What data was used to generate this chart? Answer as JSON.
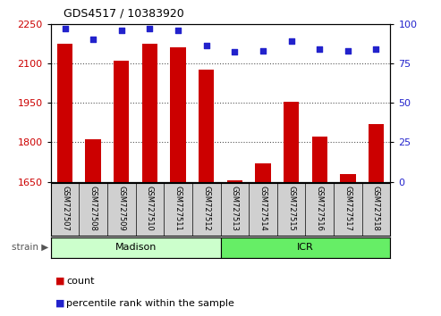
{
  "title": "GDS4517 / 10383920",
  "categories": [
    "GSM727507",
    "GSM727508",
    "GSM727509",
    "GSM727510",
    "GSM727511",
    "GSM727512",
    "GSM727513",
    "GSM727514",
    "GSM727515",
    "GSM727516",
    "GSM727517",
    "GSM727518"
  ],
  "count_values": [
    2175,
    1810,
    2110,
    2175,
    2160,
    2075,
    1655,
    1720,
    1955,
    1820,
    1680,
    1870
  ],
  "percentile_values": [
    97,
    90,
    96,
    97,
    96,
    86,
    82,
    83,
    89,
    84,
    83,
    84
  ],
  "ylim_left": [
    1650,
    2250
  ],
  "ylim_right": [
    0,
    100
  ],
  "yticks_left": [
    1650,
    1800,
    1950,
    2100,
    2250
  ],
  "yticks_right": [
    0,
    25,
    50,
    75,
    100
  ],
  "bar_color": "#cc0000",
  "dot_color": "#2222cc",
  "grid_color": "#555555",
  "strain_groups": [
    {
      "label": "Madison",
      "start": 0,
      "end": 6,
      "color": "#ccffcc"
    },
    {
      "label": "ICR",
      "start": 6,
      "end": 12,
      "color": "#66ee66"
    }
  ],
  "left_tick_color": "#cc0000",
  "right_tick_color": "#2222cc",
  "bg_color": "#d0d0d0",
  "plot_bg": "#ffffff"
}
